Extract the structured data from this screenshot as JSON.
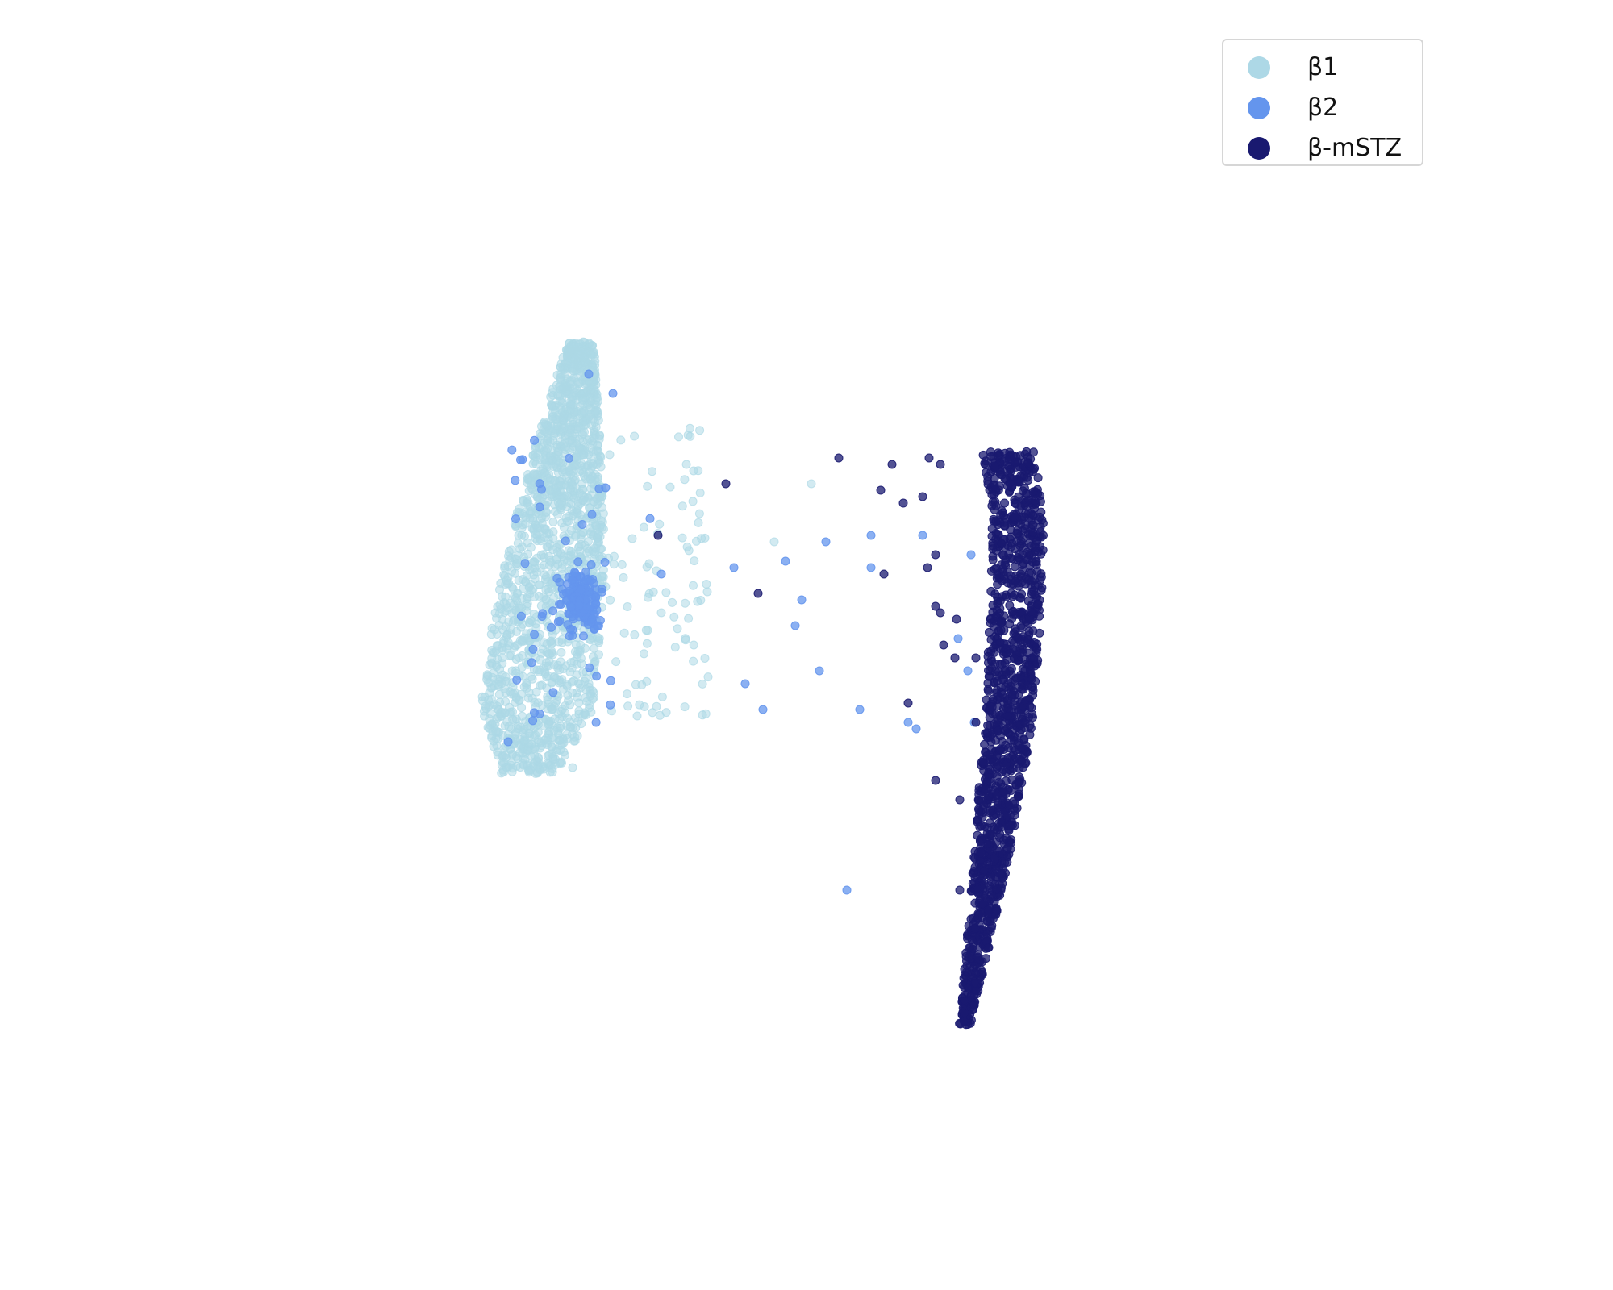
{
  "chart_data": {
    "type": "scatter",
    "title": "",
    "xlabel": "",
    "ylabel": "",
    "axes_visible": false,
    "grid": false,
    "legend_position": "top-right",
    "xlim": [
      0,
      100
    ],
    "ylim": [
      0,
      100
    ],
    "series": [
      {
        "name": "β1",
        "color": "#add8e6",
        "clusters": [
          {
            "x": [
              30.5,
              37.0
            ],
            "y": [
              40.0,
              73.5
            ],
            "count": 1700,
            "shape": "wedge"
          },
          {
            "x": [
              37.0,
              44.0
            ],
            "y": [
              44.0,
              67.0
            ],
            "count": 90,
            "shape": "scatter"
          }
        ],
        "points": [
          [
            39.5,
            44.5
          ],
          [
            35.5,
            40.5
          ],
          [
            48.0,
            58.0
          ],
          [
            50.3,
            62.5
          ],
          [
            43.0,
            63.5
          ],
          [
            41.0,
            52.5
          ]
        ]
      },
      {
        "name": "β2",
        "color": "#6495ed",
        "clusters": [
          {
            "x": [
              33.5,
              38.5
            ],
            "y": [
              48.0,
              58.5
            ],
            "count": 150,
            "shape": "blob"
          },
          {
            "x": [
              31.5,
              38.0
            ],
            "y": [
              44.0,
              66.0
            ],
            "count": 45,
            "shape": "scatter"
          }
        ],
        "points": [
          [
            31.5,
            42.5
          ],
          [
            41.0,
            55.5
          ],
          [
            45.5,
            56.0
          ],
          [
            48.7,
            56.5
          ],
          [
            51.2,
            58.0
          ],
          [
            49.7,
            53.5
          ],
          [
            49.3,
            51.5
          ],
          [
            46.2,
            47.0
          ],
          [
            47.3,
            45.0
          ],
          [
            50.8,
            48.0
          ],
          [
            53.3,
            45.0
          ],
          [
            54.0,
            58.5
          ],
          [
            54.0,
            56.0
          ],
          [
            56.3,
            44.0
          ],
          [
            56.8,
            43.5
          ],
          [
            57.2,
            58.5
          ],
          [
            60.2,
            57.0
          ],
          [
            59.4,
            50.5
          ],
          [
            60.0,
            48.0
          ],
          [
            52.5,
            31.0
          ],
          [
            38.0,
            69.5
          ],
          [
            60.4,
            44.0
          ],
          [
            40.3,
            59.8
          ],
          [
            36.5,
            71.0
          ]
        ]
      },
      {
        "name": "β-mSTZ",
        "color": "#191970",
        "clusters": [
          {
            "x": [
              59.5,
              65.0
            ],
            "y": [
              20.5,
              65.0
            ],
            "count": 1300,
            "shape": "arc"
          }
        ],
        "points": [
          [
            52.0,
            64.5
          ],
          [
            55.3,
            64.0
          ],
          [
            54.6,
            62.0
          ],
          [
            57.6,
            64.5
          ],
          [
            58.3,
            64.0
          ],
          [
            57.2,
            61.5
          ],
          [
            56.0,
            61.0
          ],
          [
            58.0,
            57.0
          ],
          [
            57.5,
            56.0
          ],
          [
            54.8,
            55.5
          ],
          [
            58.0,
            53.0
          ],
          [
            59.3,
            52.0
          ],
          [
            58.3,
            52.5
          ],
          [
            58.5,
            50.0
          ],
          [
            59.2,
            49.0
          ],
          [
            60.5,
            49.0
          ],
          [
            56.3,
            45.5
          ],
          [
            58.0,
            39.5
          ],
          [
            59.5,
            38.0
          ],
          [
            40.8,
            58.5
          ],
          [
            45.0,
            62.5
          ],
          [
            47.0,
            54.0
          ],
          [
            60.5,
            44.0
          ],
          [
            59.5,
            31.0
          ]
        ]
      }
    ]
  }
}
